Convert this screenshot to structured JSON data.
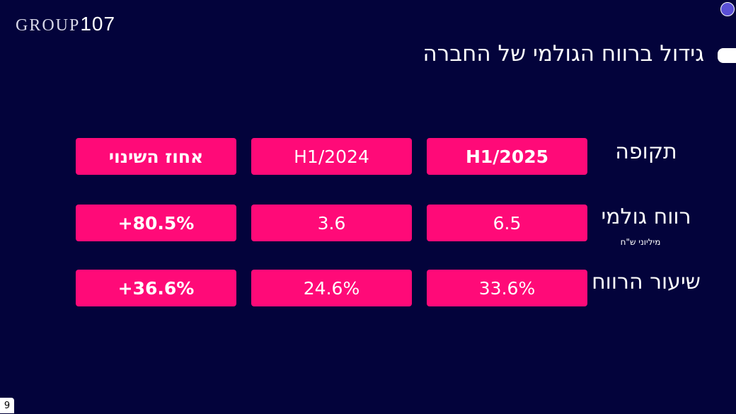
{
  "logo": {
    "light": "GROUP",
    "regular": "107"
  },
  "title": "גידול ברווח הגולמי של החברה",
  "table": {
    "header": {
      "label": "תקופה",
      "cells": [
        "H1/2025",
        "H1/2024",
        "אחוז השינוי"
      ]
    },
    "rows": [
      {
        "label": "רווח גולמי",
        "sublabel": "מיליוני ש\"ח",
        "cells": [
          "6.5",
          "3.6",
          "+80.5%"
        ]
      },
      {
        "label": "שיעור הרווח",
        "cells": [
          "33.6%",
          "24.6%",
          "+36.6%"
        ]
      }
    ]
  },
  "page_number": "9"
}
